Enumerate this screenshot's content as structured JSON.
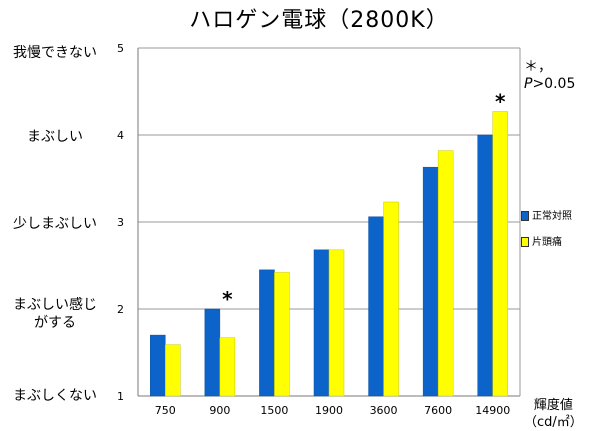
{
  "chart_data": {
    "type": "bar",
    "title": "ハロゲン電球（2800K）",
    "categories": [
      "750",
      "900",
      "1500",
      "1900",
      "3600",
      "7600",
      "14900"
    ],
    "series": [
      {
        "name": "正常対照",
        "values": [
          1.7,
          2.0,
          2.45,
          2.68,
          3.06,
          3.63,
          4.0
        ],
        "color": "#0c63c9"
      },
      {
        "name": "片頭痛",
        "values": [
          1.59,
          1.67,
          2.42,
          2.68,
          3.23,
          3.82,
          4.27
        ],
        "color": "#ffff00"
      }
    ],
    "ylim": [
      1,
      5
    ],
    "yticks": [
      "1",
      "2",
      "3",
      "4",
      "5"
    ],
    "y_level_labels": [
      "まぶしくない",
      "まぶしい感じ\nがする",
      "少しまぶしい",
      "まぶしい",
      "我慢できない"
    ],
    "xlabel": "輝度値\n（cd/㎡）",
    "grid": true,
    "legend_position": "right",
    "annotations": [
      {
        "text": "*",
        "category": "900"
      },
      {
        "text": "*",
        "category": "14900"
      }
    ],
    "note": {
      "prefix": "＊，",
      "p": "P",
      "rest": ">0.05"
    }
  }
}
